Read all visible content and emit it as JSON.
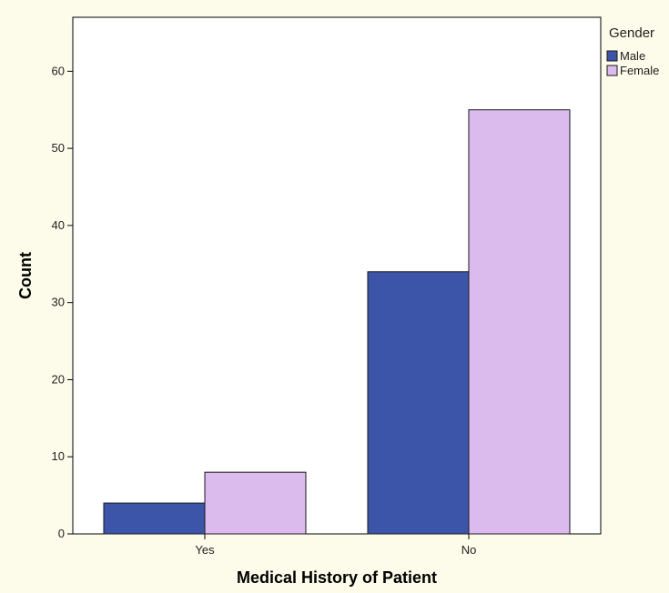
{
  "chart_data": {
    "type": "bar",
    "categories": [
      "Yes",
      "No"
    ],
    "series": [
      {
        "name": "Male",
        "values": [
          4,
          34
        ],
        "color": "#3d55a8"
      },
      {
        "name": "Female",
        "values": [
          8,
          55
        ],
        "color": "#dbbbee"
      }
    ],
    "xlabel": "Medical History of Patient",
    "ylabel": "Count",
    "ylim": [
      0,
      67
    ],
    "yticks": [
      0,
      10,
      20,
      30,
      40,
      50,
      60
    ],
    "legend": {
      "title": "Gender",
      "position": "top-right"
    },
    "grid": false
  },
  "colors": {
    "background": "#fdfbe9",
    "plot_background": "#ffffff",
    "bar_stroke": "#1a1a1a"
  }
}
